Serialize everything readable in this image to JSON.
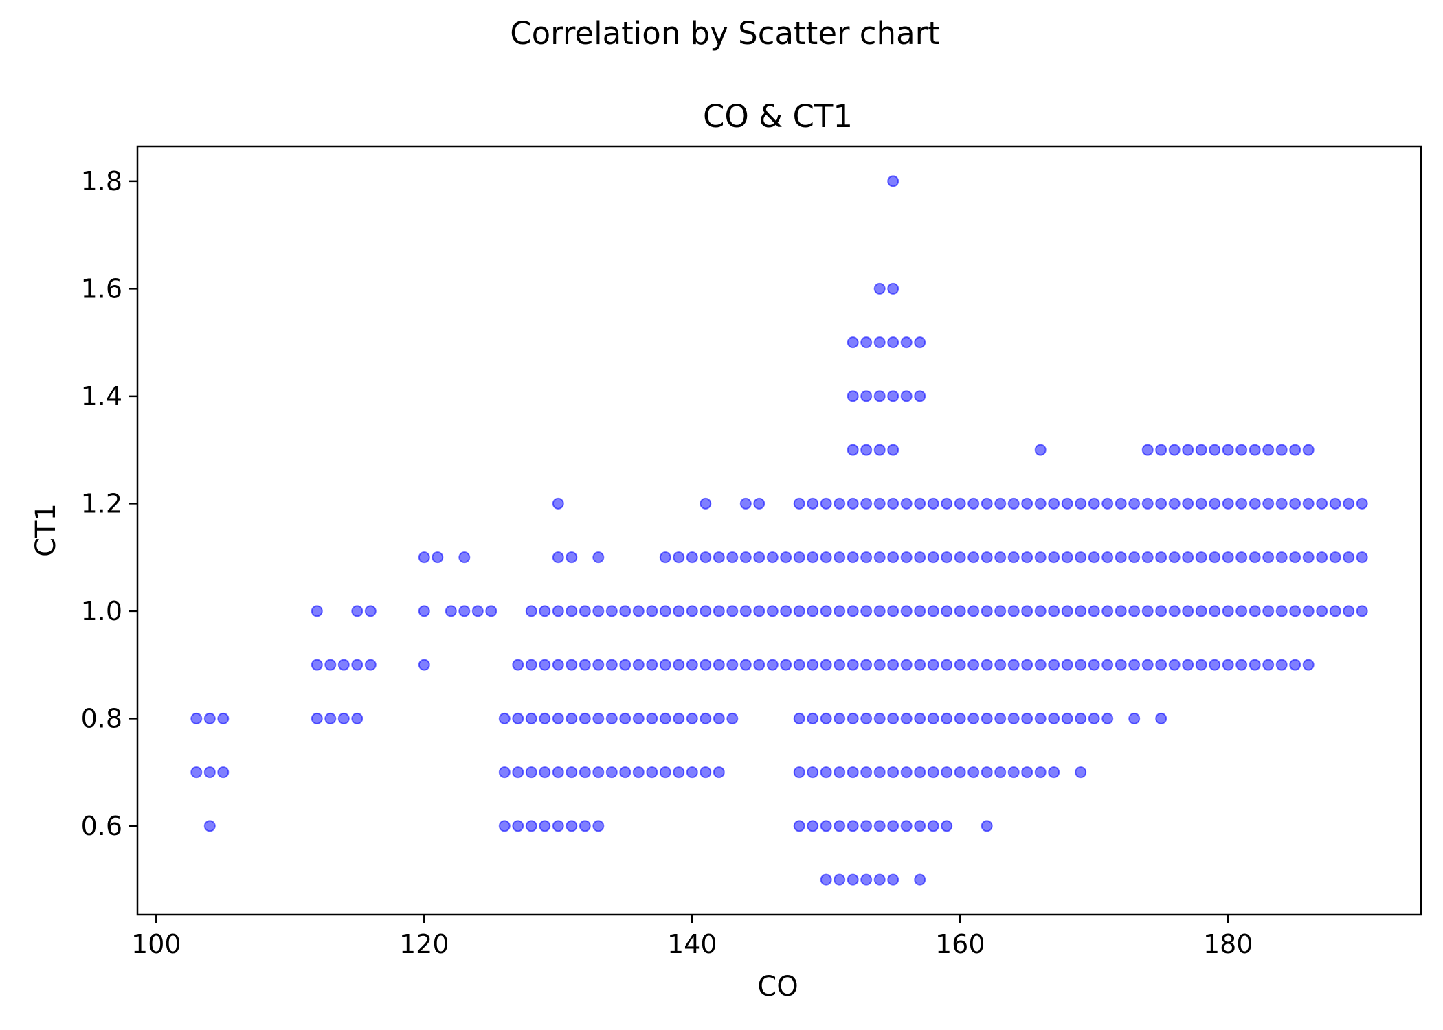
{
  "chart_data": {
    "type": "scatter",
    "suptitle": "Correlation by Scatter chart",
    "title": "CO & CT1",
    "xlabel": "CO",
    "ylabel": "CT1",
    "xlim": [
      98.6,
      194.4
    ],
    "ylim": [
      0.435,
      1.865
    ],
    "xticks": [
      100,
      120,
      140,
      160,
      180
    ],
    "yticks": [
      0.6,
      0.8,
      1.0,
      1.2,
      1.4,
      1.6,
      1.8
    ],
    "xtick_labels": [
      "100",
      "120",
      "140",
      "160",
      "180"
    ],
    "ytick_labels": [
      "0.6",
      "0.8",
      "1.0",
      "1.2",
      "1.4",
      "1.6",
      "1.8"
    ],
    "marker_color": "#0000ff",
    "marker_alpha": 0.5,
    "grid": false,
    "rows": [
      {
        "y": 1.8,
        "x": [
          [
            155,
            155
          ]
        ]
      },
      {
        "y": 1.6,
        "x": [
          [
            154,
            155
          ]
        ]
      },
      {
        "y": 1.5,
        "x": [
          [
            152,
            157
          ]
        ]
      },
      {
        "y": 1.4,
        "x": [
          [
            152,
            157
          ]
        ]
      },
      {
        "y": 1.3,
        "x": [
          [
            152,
            155
          ],
          [
            166,
            166
          ],
          [
            174,
            186
          ]
        ]
      },
      {
        "y": 1.2,
        "x": [
          [
            130,
            130
          ],
          [
            141,
            141
          ],
          [
            144,
            145
          ],
          [
            148,
            190
          ]
        ]
      },
      {
        "y": 1.1,
        "x": [
          [
            120,
            121
          ],
          [
            123,
            123
          ],
          [
            130,
            131
          ],
          [
            133,
            133
          ],
          [
            138,
            190
          ]
        ]
      },
      {
        "y": 1.0,
        "x": [
          [
            112,
            112
          ],
          [
            115,
            116
          ],
          [
            120,
            120
          ],
          [
            122,
            125
          ],
          [
            128,
            190
          ]
        ]
      },
      {
        "y": 0.9,
        "x": [
          [
            112,
            116
          ],
          [
            120,
            120
          ],
          [
            127,
            186
          ]
        ]
      },
      {
        "y": 0.8,
        "x": [
          [
            103,
            105
          ],
          [
            112,
            115
          ],
          [
            126,
            143
          ],
          [
            148,
            171
          ],
          [
            173,
            173
          ],
          [
            175,
            175
          ]
        ]
      },
      {
        "y": 0.7,
        "x": [
          [
            103,
            105
          ],
          [
            126,
            142
          ],
          [
            148,
            167
          ],
          [
            169,
            169
          ]
        ]
      },
      {
        "y": 0.6,
        "x": [
          [
            104,
            104
          ],
          [
            126,
            133
          ],
          [
            148,
            159
          ],
          [
            162,
            162
          ]
        ]
      },
      {
        "y": 0.5,
        "x": [
          [
            150,
            155
          ],
          [
            157,
            157
          ]
        ]
      }
    ]
  }
}
